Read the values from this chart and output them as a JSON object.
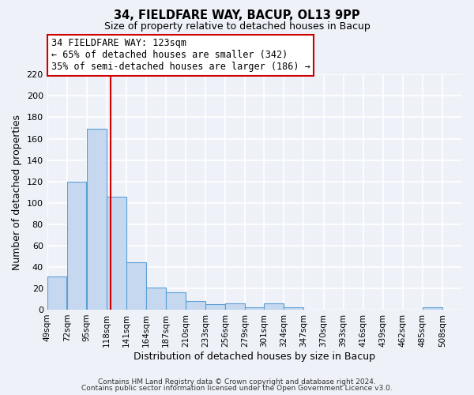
{
  "title": "34, FIELDFARE WAY, BACUP, OL13 9PP",
  "subtitle": "Size of property relative to detached houses in Bacup",
  "xlabel": "Distribution of detached houses by size in Bacup",
  "ylabel": "Number of detached properties",
  "bar_color": "#c5d8f0",
  "bar_edge_color": "#5a9fd4",
  "bin_labels": [
    "49sqm",
    "72sqm",
    "95sqm",
    "118sqm",
    "141sqm",
    "164sqm",
    "187sqm",
    "210sqm",
    "233sqm",
    "256sqm",
    "279sqm",
    "301sqm",
    "324sqm",
    "347sqm",
    "370sqm",
    "393sqm",
    "416sqm",
    "439sqm",
    "462sqm",
    "485sqm",
    "508sqm"
  ],
  "bar_heights": [
    31,
    120,
    169,
    106,
    44,
    21,
    16,
    8,
    5,
    6,
    2,
    6,
    2,
    0,
    0,
    0,
    0,
    0,
    0,
    2,
    0
  ],
  "bin_edges": [
    49,
    72,
    95,
    118,
    141,
    164,
    187,
    210,
    233,
    256,
    279,
    301,
    324,
    347,
    370,
    393,
    416,
    439,
    462,
    485,
    508,
    531
  ],
  "vline_x": 123,
  "vline_color": "#cc0000",
  "ylim": [
    0,
    220
  ],
  "yticks": [
    0,
    20,
    40,
    60,
    80,
    100,
    120,
    140,
    160,
    180,
    200,
    220
  ],
  "annotation_title": "34 FIELDFARE WAY: 123sqm",
  "annotation_line1": "← 65% of detached houses are smaller (342)",
  "annotation_line2": "35% of semi-detached houses are larger (186) →",
  "annotation_box_color": "#cc0000",
  "footer_line1": "Contains HM Land Registry data © Crown copyright and database right 2024.",
  "footer_line2": "Contains public sector information licensed under the Open Government Licence v3.0.",
  "background_color": "#eef2f8",
  "grid_color": "#ffffff"
}
